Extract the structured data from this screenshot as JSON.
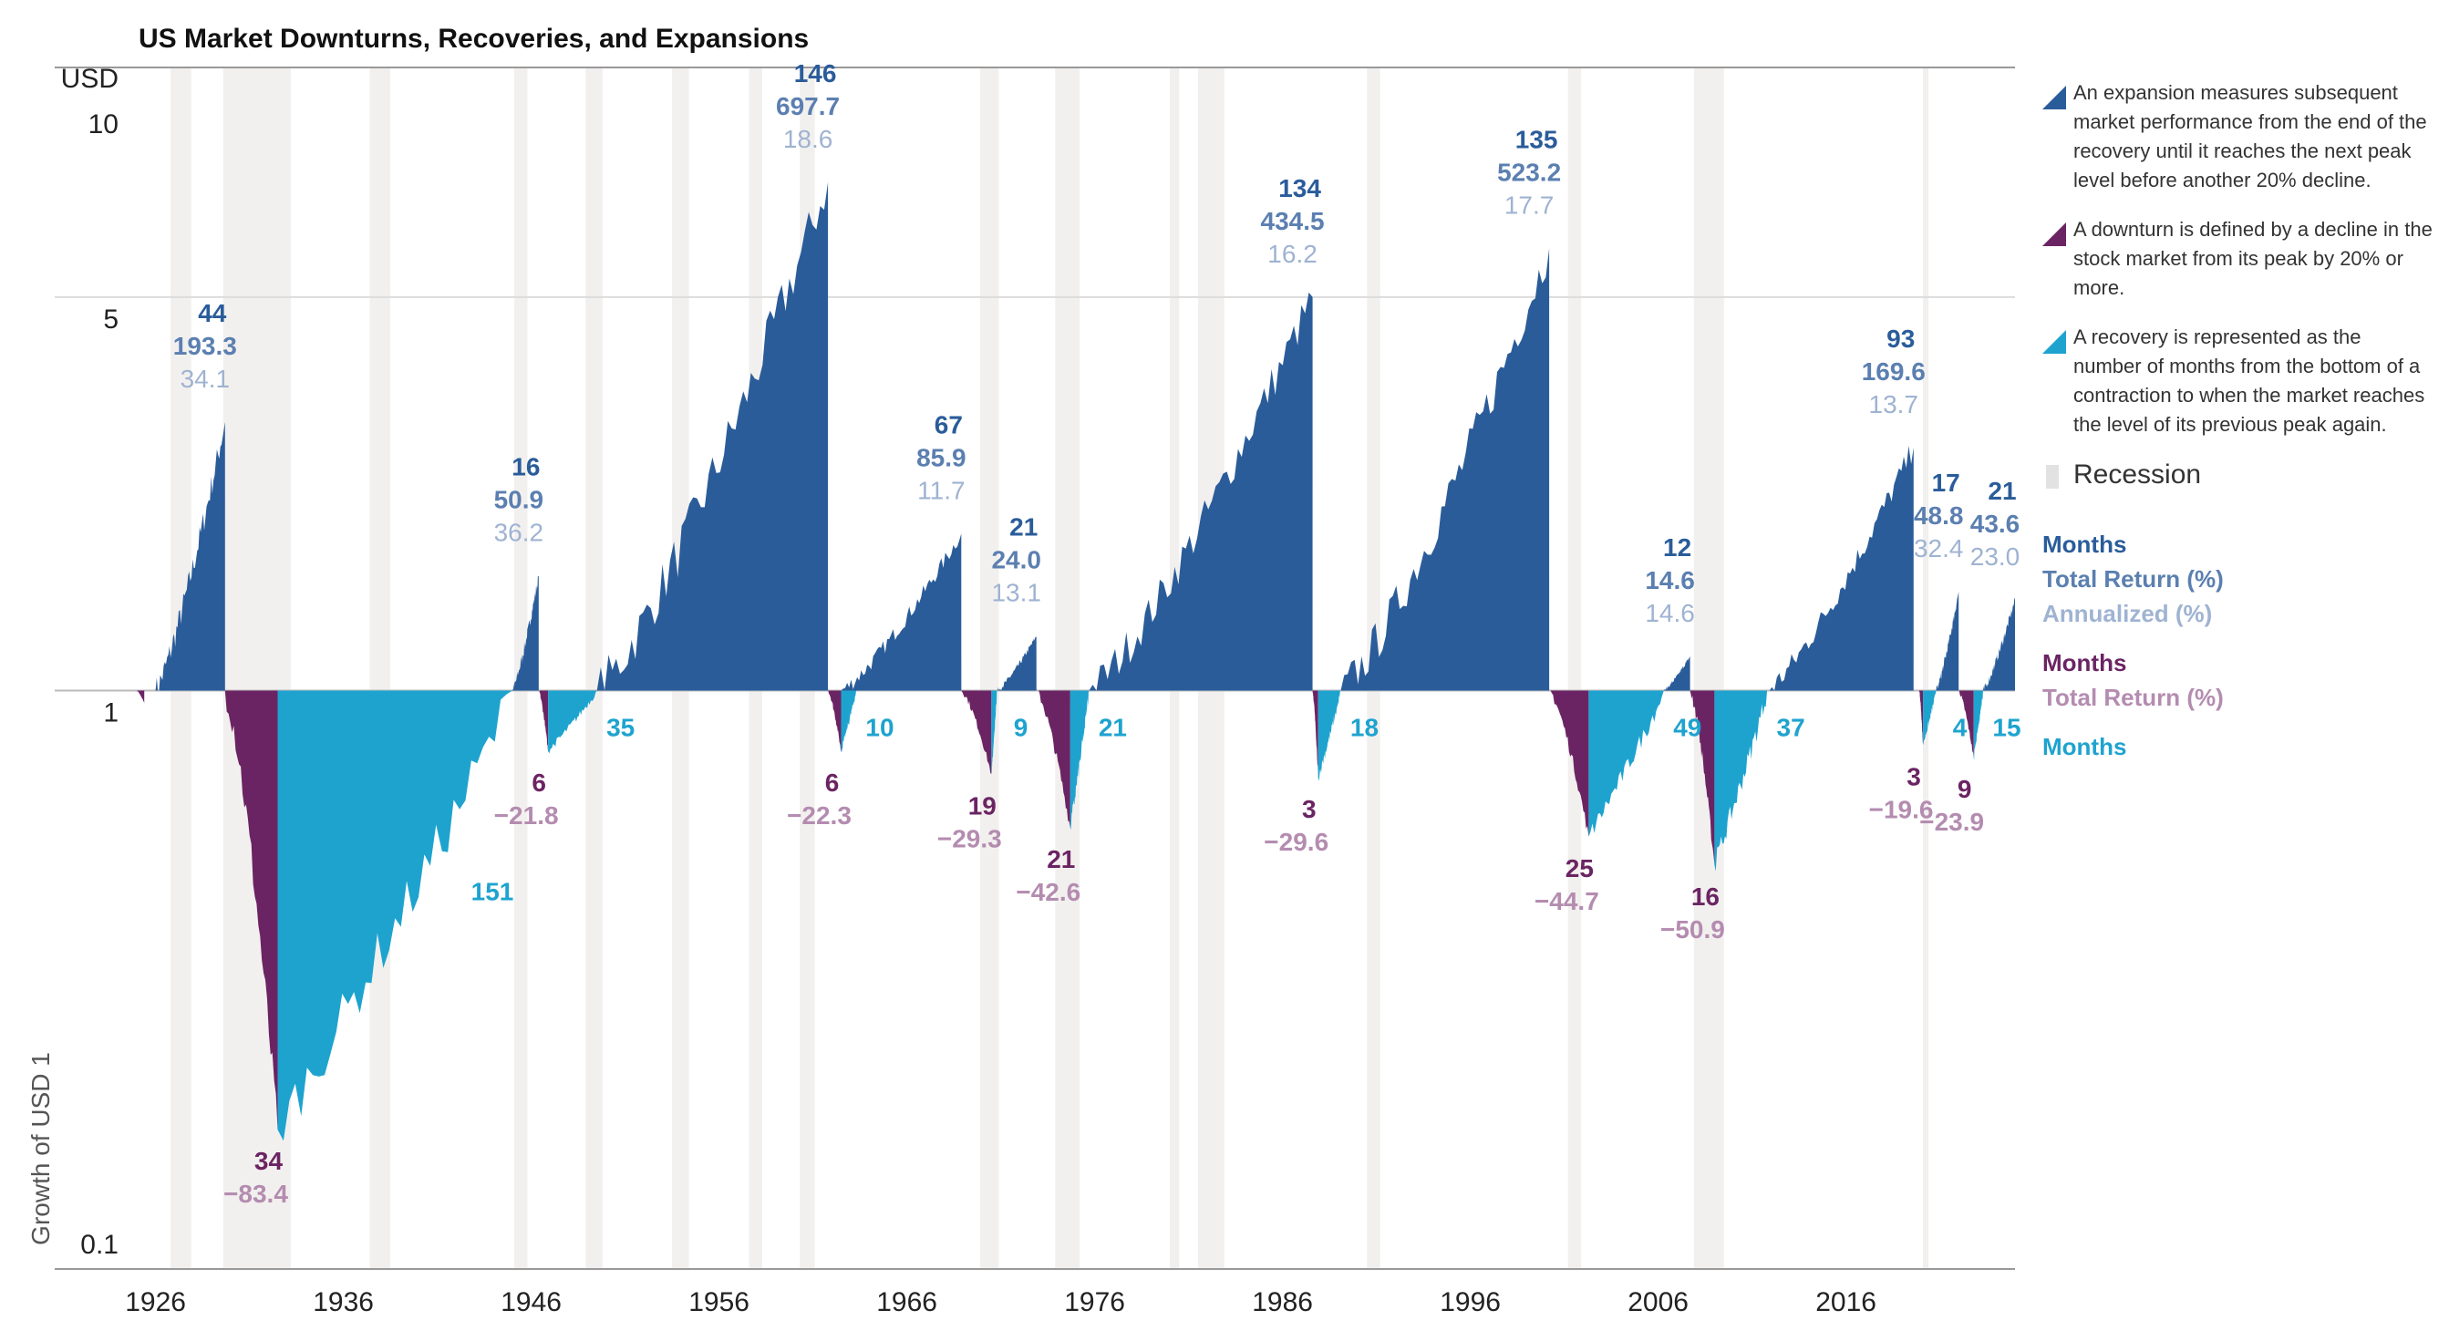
{
  "title": "US Market Downturns, Recoveries, and Expansions",
  "legend": {
    "expansion": "An expansion measures subsequent market performance from the end of the recovery until it reaches the next peak level before another 20% decline.",
    "downturn": "A downturn is defined by a decline in the stock market from its peak by 20% or more.",
    "recovery": "A recovery is represented as the number of months from the bottom of a contraction to when the market reaches the level of its previous peak again.",
    "recession": "Recession",
    "key_expansion": [
      "Months",
      "Total Return (%)",
      "Annualized (%)"
    ],
    "key_downturn": [
      "Months",
      "Total Return (%)"
    ],
    "key_recovery": [
      "Months"
    ]
  },
  "colors": {
    "expansion": "#2a5c9a",
    "downturn": "#6b2463",
    "recovery": "#1ea3cf",
    "months_blue": "#2a5c9a",
    "return_blue": "#5b7fb0",
    "annual_blue": "#9fb3d2",
    "months_purple": "#6b2463",
    "return_purple": "#b48cb0",
    "recession": "#f2f0ee"
  },
  "chart_data": {
    "type": "area",
    "y_unit": "USD",
    "ylabel": "Growth of USD 1",
    "y_scale": "log",
    "ylim": [
      0.1,
      10
    ],
    "y_ticks": [
      "10",
      "5",
      "1",
      "0.1"
    ],
    "xlim": [
      1925,
      2025
    ],
    "x_ticks": [
      "1926",
      "1936",
      "1946",
      "1956",
      "1966",
      "1976",
      "1986",
      "1996",
      "2006",
      "2016"
    ],
    "recessions": [
      [
        1926.8,
        1927.9
      ],
      [
        1929.6,
        1933.2
      ],
      [
        1937.4,
        1938.5
      ],
      [
        1945.1,
        1945.8
      ],
      [
        1948.9,
        1949.8
      ],
      [
        1953.5,
        1954.4
      ],
      [
        1957.6,
        1958.3
      ],
      [
        1960.3,
        1961.1
      ],
      [
        1969.9,
        1970.9
      ],
      [
        1973.9,
        1975.2
      ],
      [
        1980.0,
        1980.5
      ],
      [
        1981.5,
        1982.9
      ],
      [
        1990.5,
        1991.2
      ],
      [
        2001.2,
        2001.9
      ],
      [
        2007.9,
        2009.5
      ],
      [
        2020.1,
        2020.4
      ]
    ],
    "expansions": [
      {
        "start": 1926.0,
        "end": 1929.7,
        "peak": 3.0,
        "months": "44",
        "total_return": "193.3",
        "annualized": "34.1"
      },
      {
        "start": 1945.0,
        "end": 1946.4,
        "peak": 1.6,
        "months": "16",
        "total_return": "50.9",
        "annualized": "36.2"
      },
      {
        "start": 1949.5,
        "end": 1961.8,
        "peak": 8.0,
        "months": "146",
        "total_return": "697.7",
        "annualized": "18.6"
      },
      {
        "start": 1962.5,
        "end": 1968.9,
        "peak": 1.9,
        "months": "67",
        "total_return": "85.9",
        "annualized": "11.7"
      },
      {
        "start": 1970.8,
        "end": 1972.9,
        "peak": 1.25,
        "months": "21",
        "total_return": "24.0",
        "annualized": "13.1"
      },
      {
        "start": 1975.7,
        "end": 1987.6,
        "peak": 5.0,
        "months": "134",
        "total_return": "434.5",
        "annualized": "16.2"
      },
      {
        "start": 1989.1,
        "end": 2000.2,
        "peak": 6.1,
        "months": "135",
        "total_return": "523.2",
        "annualized": "17.7"
      },
      {
        "start": 2006.3,
        "end": 2007.7,
        "peak": 1.15,
        "months": "12",
        "total_return": "14.6",
        "annualized": "14.6"
      },
      {
        "start": 2011.8,
        "end": 2019.6,
        "peak": 2.7,
        "months": "93",
        "total_return": "169.6",
        "annualized": "13.7"
      },
      {
        "start": 2020.8,
        "end": 2022.0,
        "peak": 1.5,
        "months": "17",
        "total_return": "48.8",
        "annualized": "32.4"
      },
      {
        "start": 2023.3,
        "end": 2025.0,
        "peak": 1.45,
        "months": "21",
        "total_return": "43.6",
        "annualized": "23.0"
      }
    ],
    "downturns": [
      {
        "start": 1925.0,
        "end": 1925.4,
        "trough": 0.95,
        "months": "",
        "total_return": ""
      },
      {
        "start": 1929.7,
        "end": 1932.5,
        "trough": 0.166,
        "months": "34",
        "total_return": "−83.4"
      },
      {
        "start": 1946.4,
        "end": 1946.9,
        "trough": 0.78,
        "months": "6",
        "total_return": "−21.8"
      },
      {
        "start": 1961.8,
        "end": 1962.5,
        "trough": 0.78,
        "months": "6",
        "total_return": "−22.3"
      },
      {
        "start": 1968.9,
        "end": 1970.5,
        "trough": 0.71,
        "months": "19",
        "total_return": "−29.3"
      },
      {
        "start": 1972.9,
        "end": 1974.7,
        "trough": 0.57,
        "months": "21",
        "total_return": "−42.6"
      },
      {
        "start": 1987.6,
        "end": 1987.9,
        "trough": 0.7,
        "months": "3",
        "total_return": "−29.6"
      },
      {
        "start": 2000.2,
        "end": 2002.3,
        "trough": 0.55,
        "months": "25",
        "total_return": "−44.7"
      },
      {
        "start": 2007.7,
        "end": 2009.0,
        "trough": 0.49,
        "months": "16",
        "total_return": "−50.9"
      },
      {
        "start": 2019.9,
        "end": 2020.1,
        "trough": 0.8,
        "months": "3",
        "total_return": "−19.6"
      },
      {
        "start": 2022.0,
        "end": 2022.8,
        "trough": 0.76,
        "months": "9",
        "total_return": "−23.9"
      }
    ],
    "recoveries": [
      {
        "start": 1932.5,
        "end": 1945.0,
        "months": "151"
      },
      {
        "start": 1946.9,
        "end": 1949.5,
        "months": "35"
      },
      {
        "start": 1962.5,
        "end": 1963.3,
        "months": "10"
      },
      {
        "start": 1970.5,
        "end": 1970.8,
        "months": "9"
      },
      {
        "start": 1974.7,
        "end": 1975.7,
        "months": "21"
      },
      {
        "start": 1987.9,
        "end": 1989.1,
        "months": "18"
      },
      {
        "start": 2002.3,
        "end": 2006.3,
        "months": "49"
      },
      {
        "start": 2009.0,
        "end": 2011.8,
        "months": "37"
      },
      {
        "start": 2020.1,
        "end": 2020.8,
        "months": "4"
      },
      {
        "start": 2022.8,
        "end": 2023.3,
        "months": "15"
      }
    ]
  }
}
